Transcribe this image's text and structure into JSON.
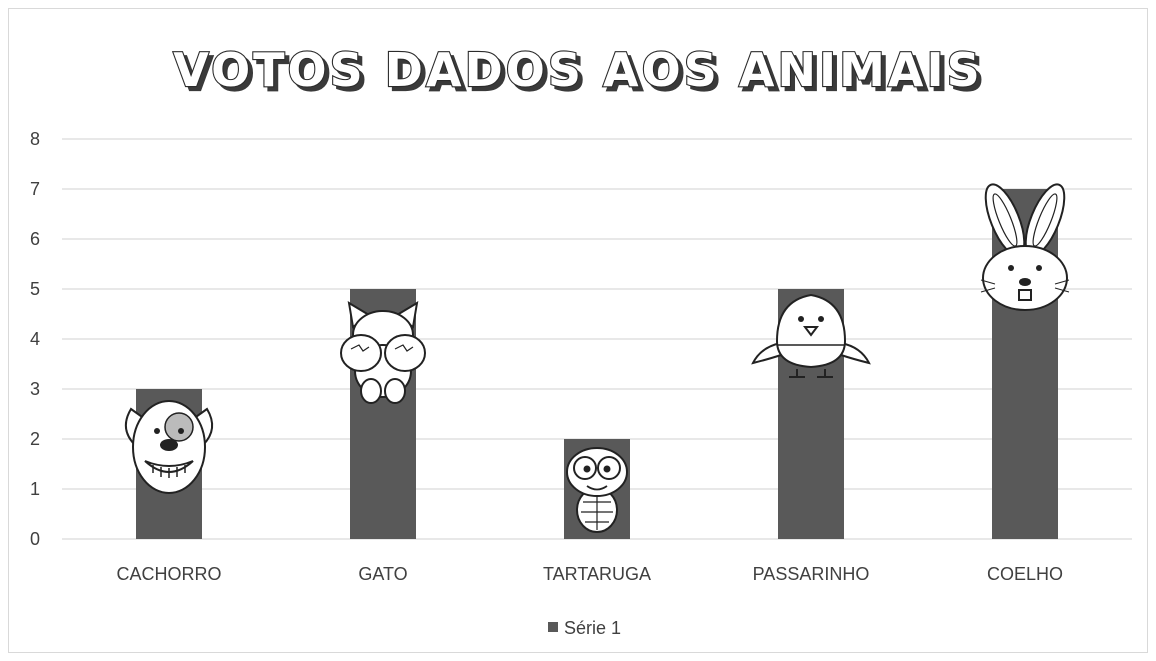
{
  "chart_data": {
    "type": "bar",
    "title": "VOTOS DADOS AOS ANIMAIS",
    "categories": [
      "CACHORRO",
      "GATO",
      "TARTARUGA",
      "PASSARINHO",
      "COELHO"
    ],
    "series": [
      {
        "name": "Série 1",
        "values": [
          3,
          5,
          2,
          5,
          7
        ],
        "color": "#595959"
      }
    ],
    "ylim": [
      0,
      8
    ],
    "yticks": [
      "0",
      "1",
      "2",
      "3",
      "4",
      "5",
      "6",
      "7",
      "8"
    ],
    "grid": true,
    "legend_position": "bottom",
    "icons": [
      "dog-icon",
      "cat-icon",
      "turtle-icon",
      "bird-icon",
      "rabbit-icon"
    ]
  }
}
